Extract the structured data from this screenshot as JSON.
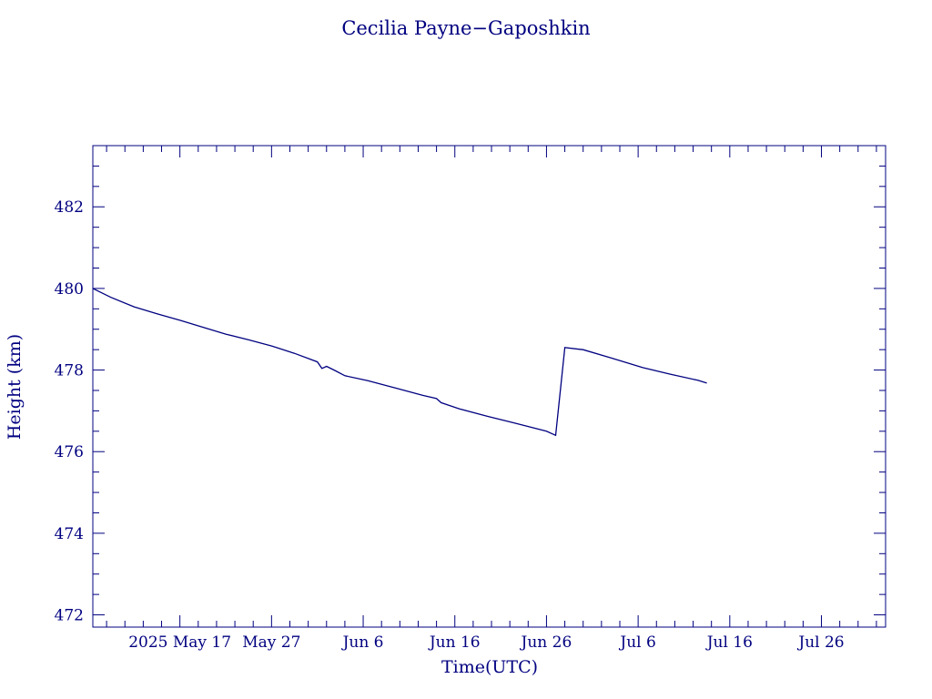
{
  "chart_data": {
    "type": "line",
    "title": "Cecilia Payne−Gaposhkin",
    "xlabel": "Time(UTC)",
    "ylabel": "Height (km)",
    "color": "#000080",
    "grid": false,
    "ylim": [
      471.7,
      483.5
    ],
    "xlim": [
      "2025-05-07T12:00",
      "2025-08-02T00:00"
    ],
    "xticks": [
      {
        "date": "2025-05-17",
        "label": "2025 May 17"
      },
      {
        "date": "2025-05-27",
        "label": "May 27"
      },
      {
        "date": "2025-06-06",
        "label": "Jun  6"
      },
      {
        "date": "2025-06-16",
        "label": "Jun 16"
      },
      {
        "date": "2025-06-26",
        "label": "Jun 26"
      },
      {
        "date": "2025-07-06",
        "label": "Jul  6"
      },
      {
        "date": "2025-07-16",
        "label": "Jul 16"
      },
      {
        "date": "2025-07-26",
        "label": "Jul 26"
      }
    ],
    "yticks": [
      {
        "value": 472,
        "label": "472"
      },
      {
        "value": 474,
        "label": "474"
      },
      {
        "value": 476,
        "label": "476"
      },
      {
        "value": 478,
        "label": "478"
      },
      {
        "value": 480,
        "label": "480"
      },
      {
        "value": 482,
        "label": "482"
      }
    ],
    "series": [
      {
        "points": [
          [
            "2025-05-07T12:00",
            480.0
          ],
          [
            "2025-05-09T12:00",
            479.78
          ],
          [
            "2025-05-12T00:00",
            479.55
          ],
          [
            "2025-05-14T12:00",
            479.38
          ],
          [
            "2025-05-17T00:00",
            479.22
          ],
          [
            "2025-05-19T12:00",
            479.05
          ],
          [
            "2025-05-22T00:00",
            478.88
          ],
          [
            "2025-05-24T12:00",
            478.74
          ],
          [
            "2025-05-27T00:00",
            478.59
          ],
          [
            "2025-05-29T12:00",
            478.41
          ],
          [
            "2025-06-01T00:00",
            478.2
          ],
          [
            "2025-06-01T12:00",
            478.04
          ],
          [
            "2025-06-02T00:00",
            478.09
          ],
          [
            "2025-06-03T00:00",
            477.98
          ],
          [
            "2025-06-04T00:00",
            477.86
          ],
          [
            "2025-06-06T12:00",
            477.74
          ],
          [
            "2025-06-09T12:00",
            477.56
          ],
          [
            "2025-06-12T12:00",
            477.38
          ],
          [
            "2025-06-14T00:00",
            477.3
          ],
          [
            "2025-06-14T12:00",
            477.2
          ],
          [
            "2025-06-16T12:00",
            477.05
          ],
          [
            "2025-06-19T12:00",
            476.87
          ],
          [
            "2025-06-22T12:00",
            476.7
          ],
          [
            "2025-06-26T00:00",
            476.5
          ],
          [
            "2025-06-27T00:00",
            476.4
          ],
          [
            "2025-06-28T00:00",
            478.55
          ],
          [
            "2025-06-30T00:00",
            478.5
          ],
          [
            "2025-07-03T00:00",
            478.3
          ],
          [
            "2025-07-06T12:00",
            478.06
          ],
          [
            "2025-07-09T12:00",
            477.9
          ],
          [
            "2025-07-12T12:00",
            477.75
          ],
          [
            "2025-07-13T12:00",
            477.68
          ]
        ]
      }
    ]
  }
}
